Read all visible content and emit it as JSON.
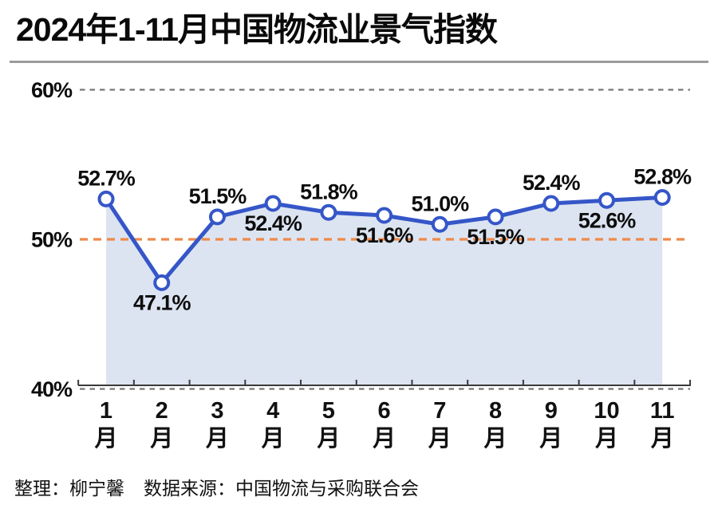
{
  "title": "2024年1-11月中国物流业景气指数",
  "footer": {
    "credit": "整理：柳宁馨",
    "source": "数据来源：中国物流与采购联合会"
  },
  "chart_data": {
    "type": "area",
    "title": "2024年1-11月中国物流业景气指数",
    "categories": [
      "1月",
      "2月",
      "3月",
      "4月",
      "5月",
      "6月",
      "7月",
      "8月",
      "9月",
      "10月",
      "11月"
    ],
    "values": [
      52.7,
      47.1,
      51.5,
      52.4,
      51.8,
      51.6,
      51.0,
      51.5,
      52.4,
      52.6,
      52.8
    ],
    "point_labels": [
      "52.7%",
      "47.1%",
      "51.5%",
      "52.4%",
      "51.8%",
      "51.6%",
      "51.0%",
      "51.5%",
      "52.4%",
      "52.6%",
      "52.8%"
    ],
    "label_positions": [
      "above",
      "below",
      "above",
      "below",
      "above",
      "below",
      "above",
      "below",
      "above",
      "below",
      "above"
    ],
    "y_ticks": [
      {
        "label": "60%",
        "value": 60
      },
      {
        "label": "50%",
        "value": 50
      },
      {
        "label": "40%",
        "value": 40
      }
    ],
    "ylim": [
      40,
      62
    ],
    "xlabel": "",
    "ylabel": "",
    "grid": "horizontal-dashed",
    "legend": "none",
    "reference_line": {
      "value": 50,
      "style": "dashed",
      "color": "#ee8a4a"
    },
    "colors": {
      "line": "#3556c8",
      "marker_fill": "#ffffff",
      "marker_stroke": "#3556c8",
      "area_fill": "#dce4f1",
      "grid_dash": "#777777",
      "axis": "#3a3a3a",
      "text": "#0d0d0d"
    }
  }
}
